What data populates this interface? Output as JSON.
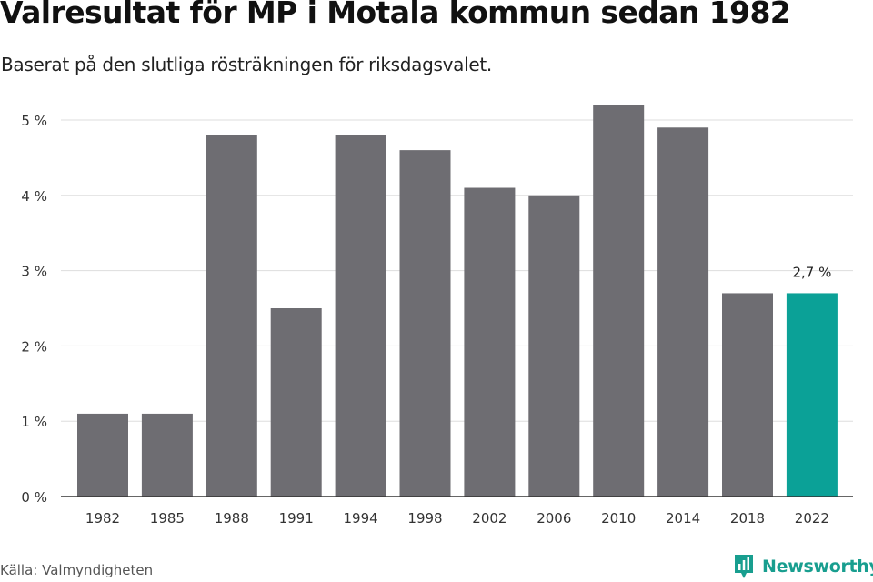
{
  "title": "Valresultat för MP i Motala kommun sedan 1982",
  "subtitle": "Baserat på den slutliga rösträkningen för riksdagsvalet.",
  "source": "Källa: Valmyndigheten",
  "brand": {
    "name": "Newsworthy",
    "icon": "newsworthy-logo-icon",
    "color": "#189e8f"
  },
  "colors": {
    "bar": "#6e6d72",
    "highlight": "#0ba197",
    "grid": "#dddddd",
    "axis": "#333333"
  },
  "chart_data": {
    "type": "bar",
    "categories": [
      "1982",
      "1985",
      "1988",
      "1991",
      "1994",
      "1998",
      "2002",
      "2006",
      "2010",
      "2014",
      "2018",
      "2022"
    ],
    "values": [
      1.1,
      1.1,
      4.8,
      2.5,
      4.8,
      4.6,
      4.1,
      4.0,
      5.2,
      4.9,
      2.7,
      2.7
    ],
    "y_ticks": [
      0,
      1,
      2,
      3,
      4,
      5
    ],
    "y_tick_labels": [
      "0 %",
      "1 %",
      "2 %",
      "3 %",
      "4 %",
      "5 %"
    ],
    "ylim": [
      0,
      5.2
    ],
    "grid": true,
    "highlight_index": 11,
    "annotation": {
      "index": 11,
      "text": "2,7 %"
    }
  }
}
